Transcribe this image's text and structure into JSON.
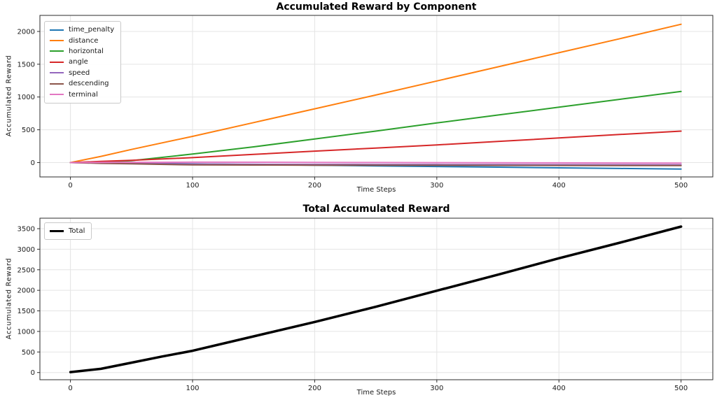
{
  "figure": {
    "background": "#ffffff",
    "text_color": "#1a1a1a",
    "spine_color": "#2b2b2b",
    "grid_color": "#e4e4e4"
  },
  "chart_data": [
    {
      "type": "line",
      "title": "Accumulated Reward by Component",
      "xlabel": "Time Steps",
      "ylabel": "Accumulated Reward",
      "x": [
        0,
        25,
        50,
        100,
        150,
        200,
        250,
        300,
        350,
        400,
        450,
        500
      ],
      "series": [
        {
          "name": "time_penalty",
          "color": "#1f77b4",
          "values": [
            0,
            -5,
            -10,
            -20,
            -30,
            -40,
            -50,
            -60,
            -70,
            -80,
            -90,
            -100
          ]
        },
        {
          "name": "distance",
          "color": "#ff7f0e",
          "values": [
            0,
            95,
            200,
            400,
            610,
            820,
            1030,
            1245,
            1460,
            1675,
            1890,
            2110
          ]
        },
        {
          "name": "horizontal",
          "color": "#2ca02c",
          "values": [
            0,
            8,
            30,
            130,
            240,
            360,
            480,
            605,
            725,
            845,
            965,
            1085
          ]
        },
        {
          "name": "angle",
          "color": "#d62728",
          "values": [
            0,
            18,
            35,
            75,
            125,
            175,
            222,
            270,
            322,
            375,
            428,
            480
          ]
        },
        {
          "name": "speed",
          "color": "#9467bd",
          "values": [
            0,
            -7,
            -12,
            -22,
            -26,
            -28,
            -29,
            -30,
            -31,
            -32,
            -33,
            -34
          ]
        },
        {
          "name": "descending",
          "color": "#8c564b",
          "values": [
            0,
            -12,
            -20,
            -35,
            -38,
            -40,
            -41,
            -42,
            -43,
            -44,
            -45,
            -46
          ]
        },
        {
          "name": "terminal",
          "color": "#e377c2",
          "values": [
            0,
            2,
            4,
            6,
            5,
            3,
            1,
            -1,
            -3,
            -5,
            -7,
            -9
          ]
        }
      ],
      "x_ticks": [
        0,
        100,
        200,
        300,
        400,
        500
      ],
      "y_ticks": [
        0,
        500,
        1000,
        1500,
        2000
      ],
      "xlim": [
        -25,
        526
      ],
      "ylim": [
        -219,
        2245
      ],
      "grid": true,
      "legend_position": "upper-left",
      "line_width": 2
    },
    {
      "type": "line",
      "title": "Total Accumulated Reward",
      "xlabel": "Time Steps",
      "ylabel": "Accumulated Reward",
      "x": [
        0,
        25,
        50,
        75,
        100,
        150,
        200,
        250,
        300,
        350,
        400,
        450,
        500
      ],
      "series": [
        {
          "name": "Total",
          "color": "#000000",
          "values": [
            10,
            90,
            240,
            390,
            530,
            880,
            1230,
            1600,
            1990,
            2380,
            2780,
            3160,
            3550
          ]
        }
      ],
      "x_ticks": [
        0,
        100,
        200,
        300,
        400,
        500
      ],
      "y_ticks": [
        0,
        500,
        1000,
        1500,
        2000,
        2500,
        3000,
        3500
      ],
      "xlim": [
        -25,
        526
      ],
      "ylim": [
        -175,
        3755
      ],
      "grid": true,
      "legend_position": "upper-left",
      "line_width": 3.5
    }
  ]
}
